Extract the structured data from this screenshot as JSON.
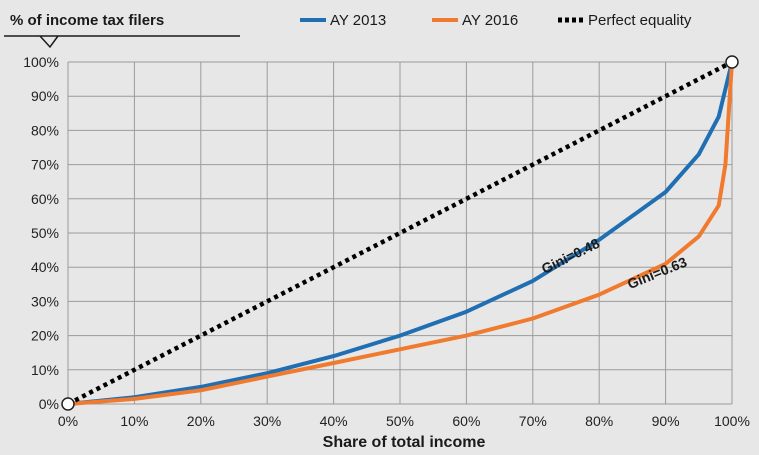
{
  "chart_data": {
    "type": "line",
    "title": "% of income tax filers",
    "xlabel": "Share of total income",
    "ylabel": "",
    "xlim": [
      0,
      100
    ],
    "ylim": [
      0,
      100
    ],
    "x_ticks": [
      "0%",
      "10%",
      "20%",
      "30%",
      "40%",
      "50%",
      "60%",
      "70%",
      "80%",
      "90%",
      "100%"
    ],
    "y_ticks": [
      "0%",
      "10%",
      "20%",
      "30%",
      "40%",
      "50%",
      "60%",
      "70%",
      "80%",
      "90%",
      "100%"
    ],
    "grid": true,
    "legend_position": "top-right",
    "series": [
      {
        "name": "AY 2013",
        "color": "#1f6fb2",
        "style": "solid",
        "points": [
          [
            0,
            0
          ],
          [
            10,
            2
          ],
          [
            20,
            5
          ],
          [
            30,
            9
          ],
          [
            40,
            14
          ],
          [
            50,
            20
          ],
          [
            60,
            27
          ],
          [
            70,
            36
          ],
          [
            80,
            48
          ],
          [
            90,
            62
          ],
          [
            95,
            73
          ],
          [
            98,
            84
          ],
          [
            100,
            100
          ]
        ]
      },
      {
        "name": "AY 2016",
        "color": "#f07a2e",
        "style": "solid",
        "points": [
          [
            0,
            0
          ],
          [
            10,
            1.5
          ],
          [
            20,
            4
          ],
          [
            30,
            8
          ],
          [
            40,
            12
          ],
          [
            50,
            16
          ],
          [
            60,
            20
          ],
          [
            70,
            25
          ],
          [
            80,
            32
          ],
          [
            90,
            41
          ],
          [
            95,
            49
          ],
          [
            98,
            58
          ],
          [
            99,
            70
          ],
          [
            100,
            100
          ]
        ]
      },
      {
        "name": "Perfect equality",
        "color": "#000000",
        "style": "dotted",
        "points": [
          [
            0,
            0
          ],
          [
            100,
            100
          ]
        ]
      }
    ],
    "annotations": [
      {
        "text": "Gini=0.48",
        "x": 76,
        "y": 42,
        "angle": -26
      },
      {
        "text": "Gini=0.63",
        "x": 89,
        "y": 37,
        "angle": -22
      }
    ]
  }
}
